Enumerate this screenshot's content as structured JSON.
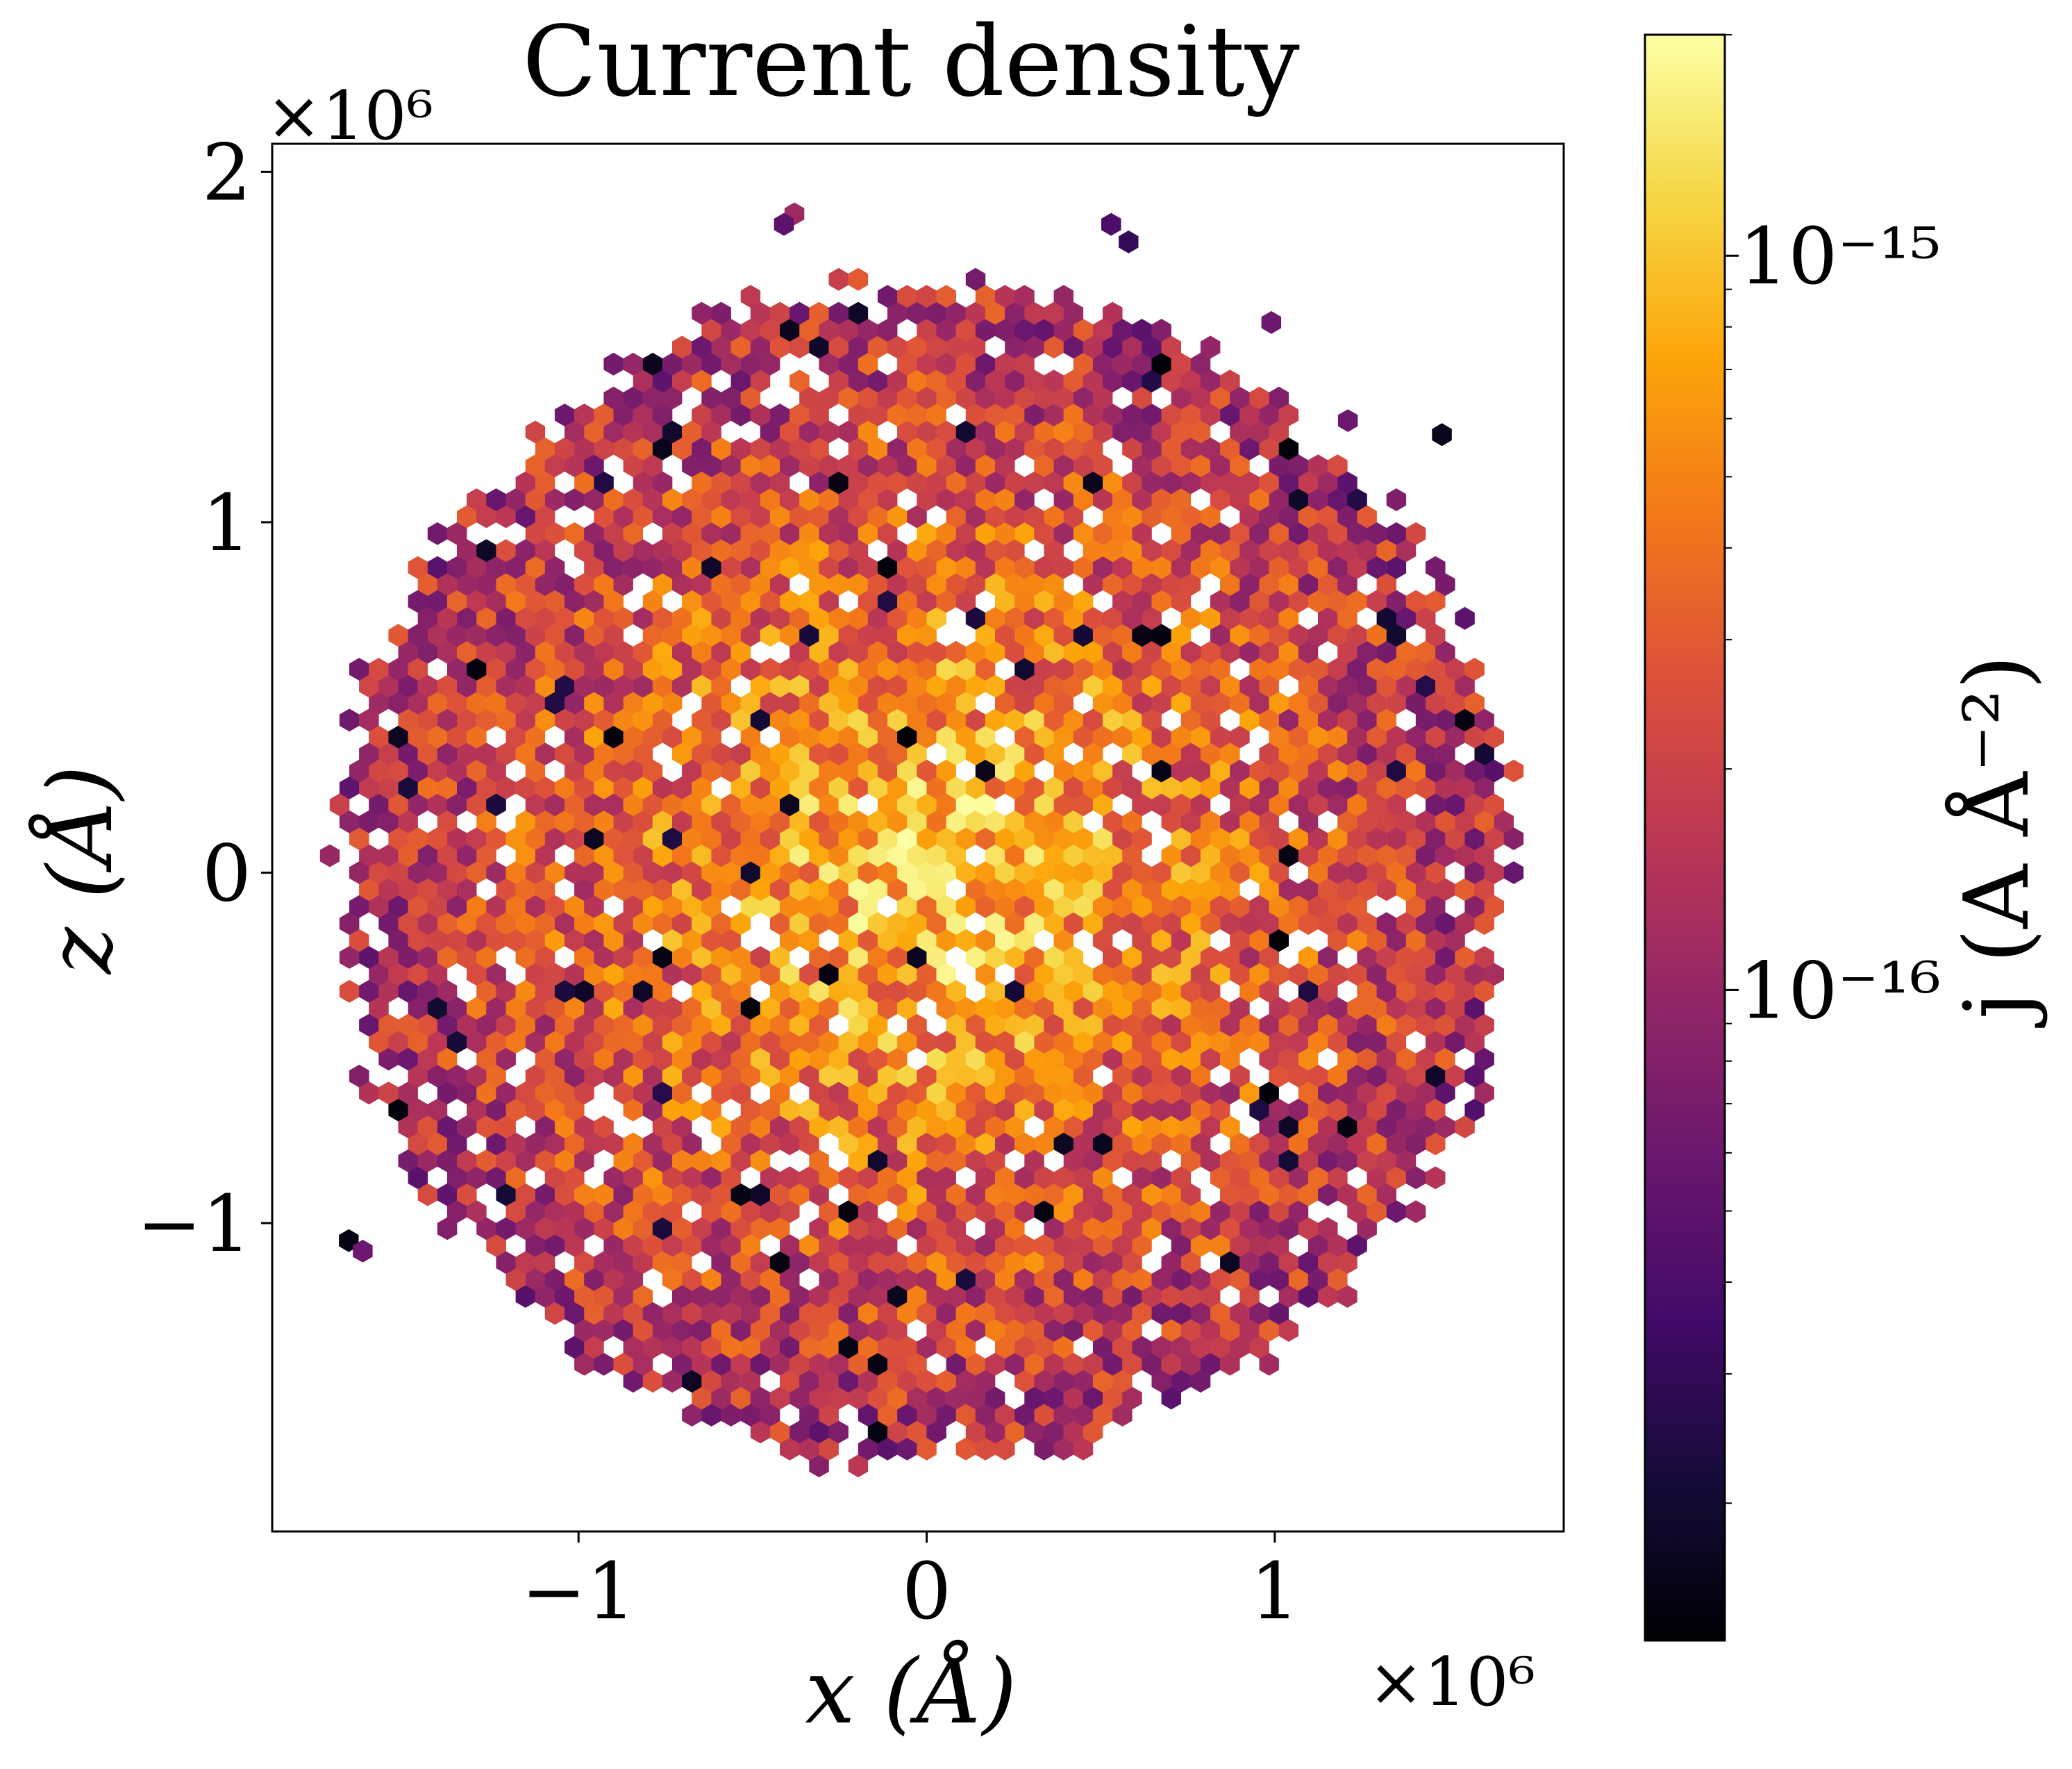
{
  "chart_data": {
    "type": "hexbin",
    "title": "Current density",
    "xlabel": "x (Å)",
    "ylabel": "z (Å)",
    "x_multiplier": "×10⁶",
    "y_multiplier": "×10⁶",
    "xlim": [
      -1.88,
      1.83
    ],
    "ylim": [
      -1.88,
      2.08
    ],
    "xticks": [
      -1,
      0,
      1
    ],
    "xtick_labels": [
      "−1",
      "0",
      "1"
    ],
    "yticks": [
      -1,
      0,
      1,
      2
    ],
    "ytick_labels": [
      "−1",
      "0",
      "1",
      "2"
    ],
    "grid": false,
    "colorbar": {
      "label": "j (A Å⁻²)",
      "colormap": "inferno",
      "scale": "log",
      "range": [
        1.3e-17,
        2e-15
      ],
      "major_ticks": [
        1e-16,
        1e-15
      ],
      "major_labels": [
        "10⁻¹⁶",
        "10⁻¹⁵"
      ]
    },
    "hexbin": {
      "gridsize": 66,
      "disk_radius": 1.68,
      "center_value": 1.8e-15,
      "isolated_bins": [
        {
          "x": -0.38,
          "z": 1.88,
          "value": 1.1e-16
        },
        {
          "x": -0.41,
          "z": 1.85,
          "value": 5e-17
        },
        {
          "x": 0.53,
          "z": 1.85,
          "value": 4e-17
        },
        {
          "x": 0.58,
          "z": 1.8,
          "value": 3e-17
        },
        {
          "x": 0.99,
          "z": 1.57,
          "value": 6e-17
        },
        {
          "x": 1.21,
          "z": 1.29,
          "value": 6e-17
        },
        {
          "x": 1.48,
          "z": 1.25,
          "value": 1.6e-17
        },
        {
          "x": -1.66,
          "z": -1.05,
          "value": 1.5e-17
        },
        {
          "x": -1.62,
          "z": -1.08,
          "value": 6e-17
        }
      ]
    }
  }
}
